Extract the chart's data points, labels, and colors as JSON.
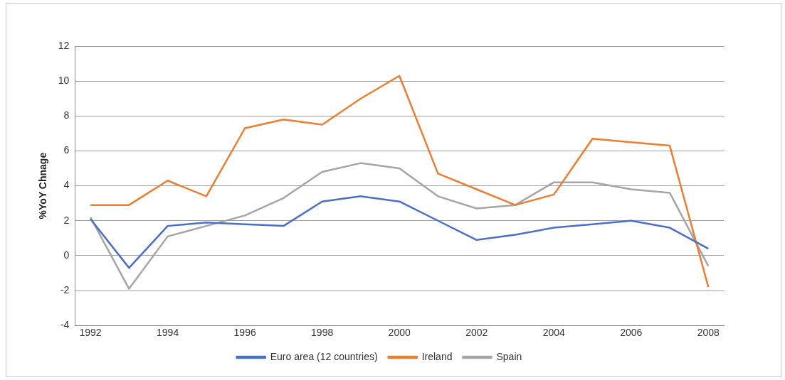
{
  "chart_data": {
    "type": "line",
    "ylabel": "%YoY Chnage",
    "x": [
      1992,
      1993,
      1994,
      1995,
      1996,
      1997,
      1998,
      1999,
      2000,
      2001,
      2002,
      2003,
      2004,
      2005,
      2006,
      2007,
      2008
    ],
    "series": [
      {
        "name": "Euro area (12 countries)",
        "color": "#4a6fc8",
        "values": [
          2.1,
          -0.7,
          1.7,
          1.9,
          1.8,
          1.7,
          3.1,
          3.4,
          3.1,
          2.0,
          0.9,
          1.2,
          1.6,
          1.8,
          2.0,
          1.6,
          0.4
        ]
      },
      {
        "name": "Ireland",
        "color": "#ed7d31",
        "values": [
          2.9,
          2.9,
          4.3,
          3.4,
          7.3,
          7.8,
          7.5,
          9.0,
          10.3,
          4.7,
          3.8,
          2.9,
          3.5,
          6.7,
          6.5,
          6.3,
          -1.8
        ]
      },
      {
        "name": "Spain",
        "color": "#a5a5a5",
        "values": [
          2.2,
          -1.9,
          1.1,
          1.7,
          2.3,
          3.3,
          4.8,
          5.3,
          5.0,
          3.4,
          2.7,
          2.9,
          4.2,
          4.2,
          3.8,
          3.6,
          -0.6
        ]
      }
    ],
    "xlim": [
      1991.6,
      2008.4
    ],
    "xticks": [
      1992,
      1994,
      1996,
      1998,
      2000,
      2002,
      2004,
      2006,
      2008
    ],
    "ylim": [
      -4,
      12
    ],
    "yticks": [
      -4,
      -2,
      0,
      2,
      4,
      6,
      8,
      10,
      12
    ],
    "grid": "y",
    "legend": "bottom",
    "marker": "none",
    "line_style": "solid"
  }
}
